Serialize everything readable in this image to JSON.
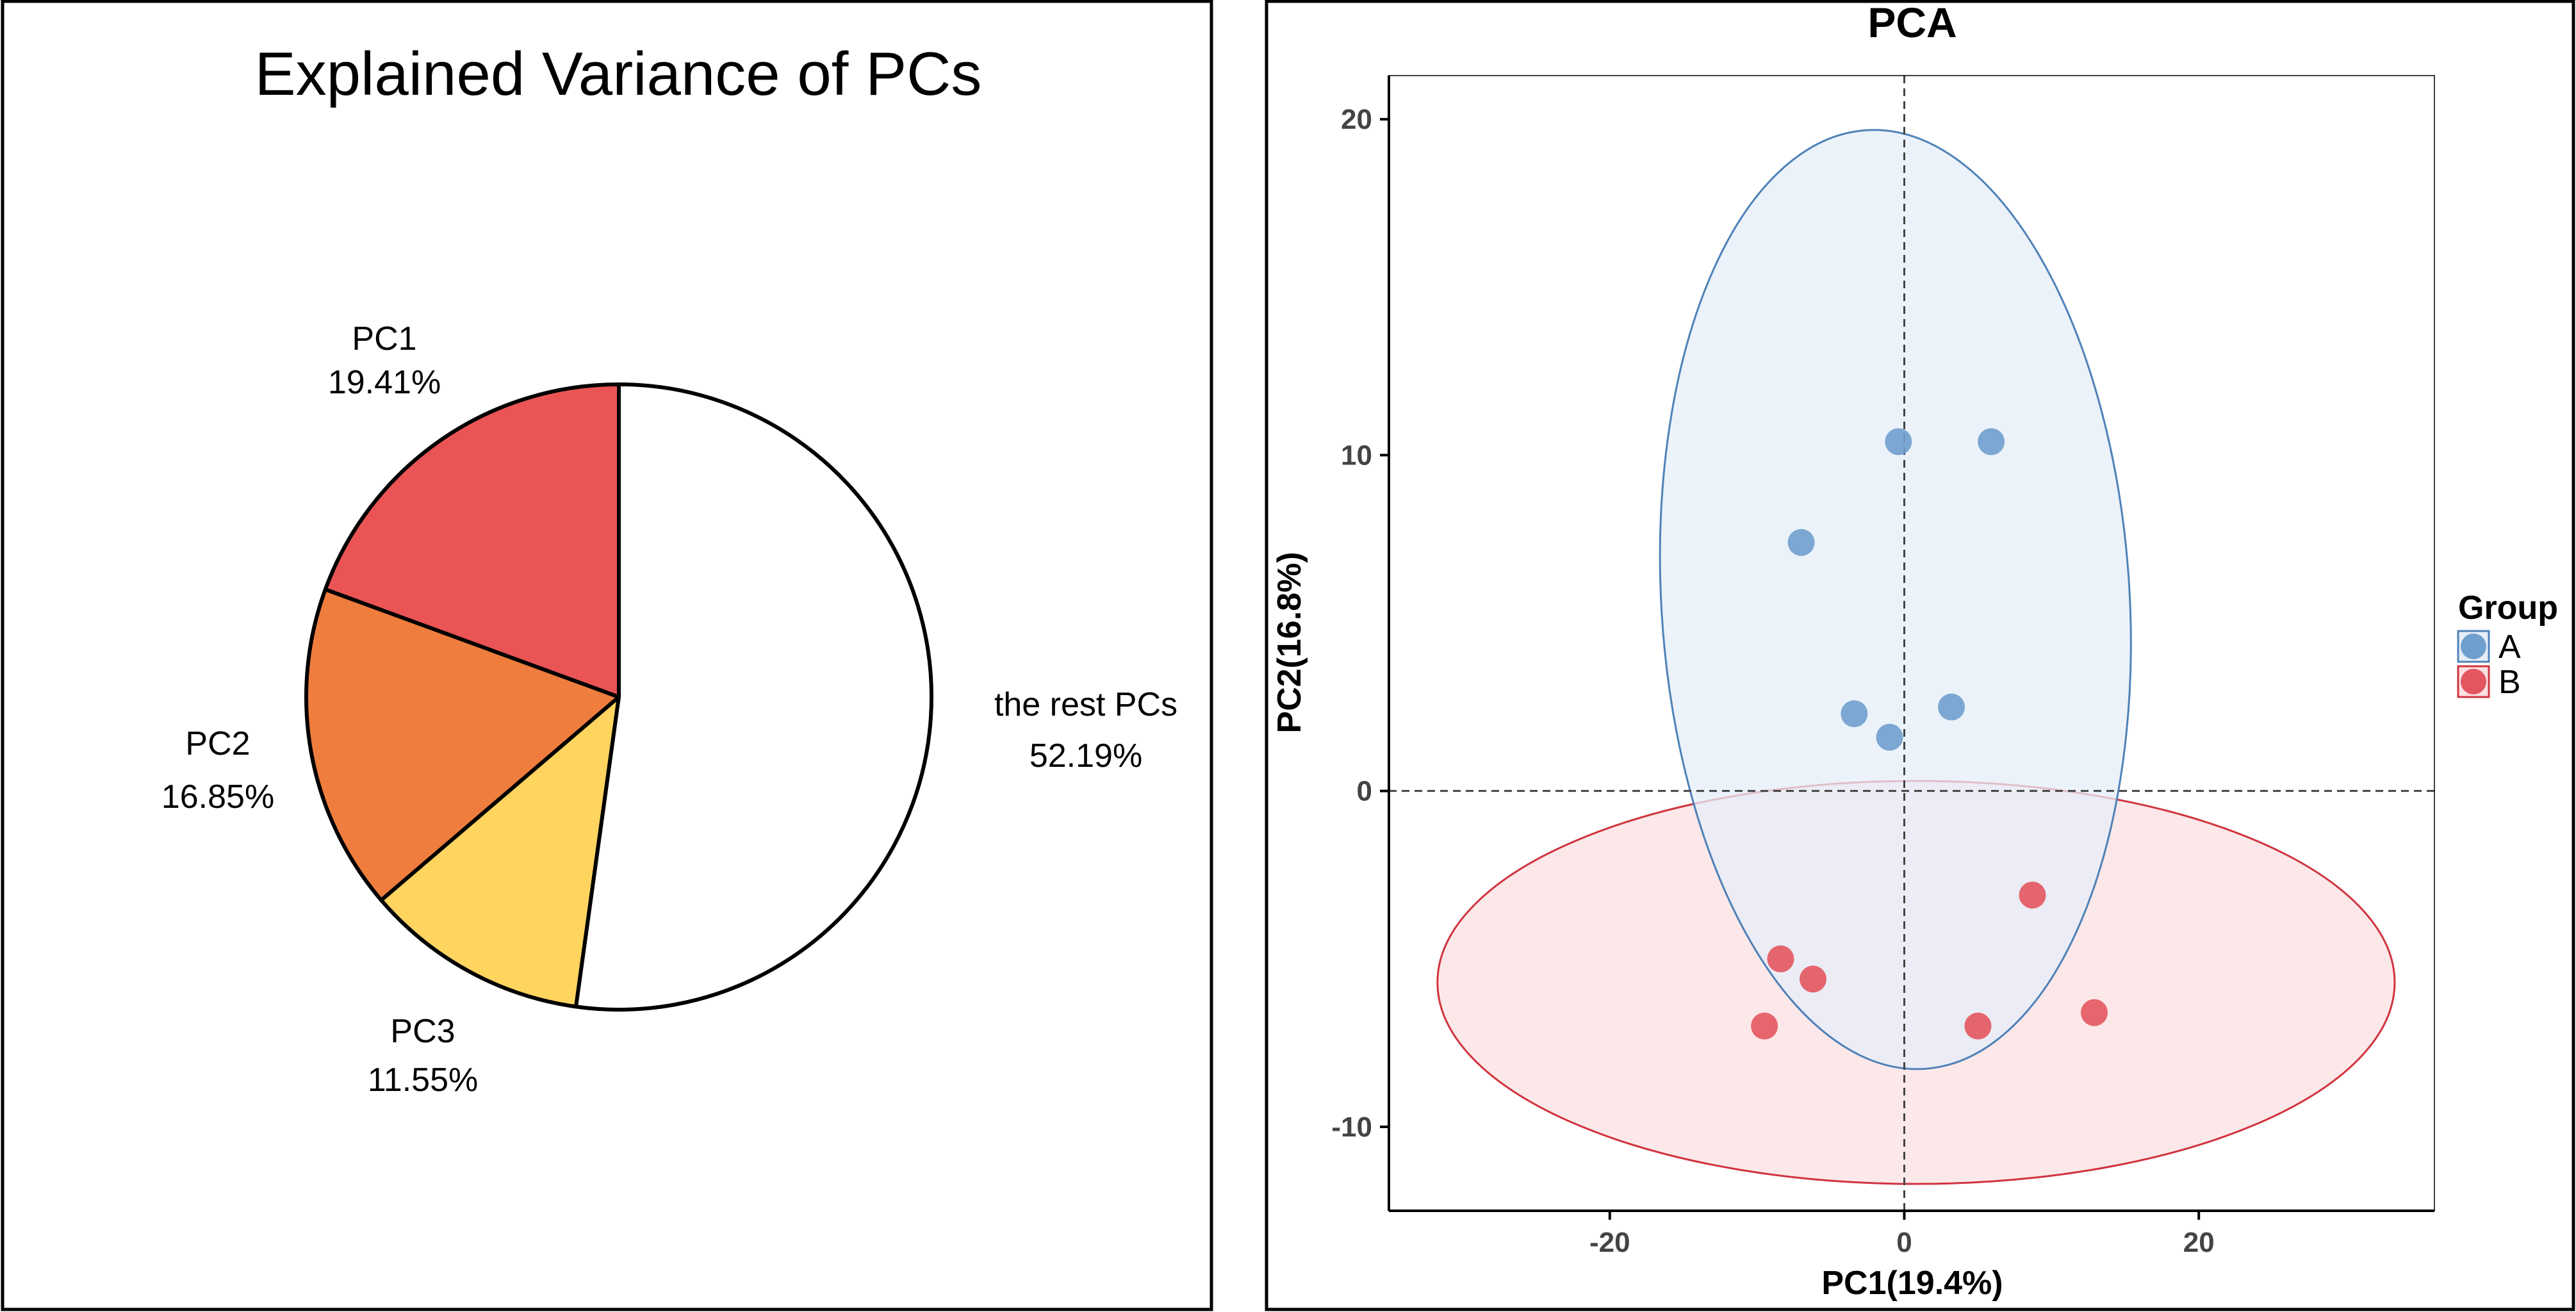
{
  "colors": {
    "pc1": "#EA5455",
    "pc2": "#EE7D3E",
    "pc3": "#FFD45F",
    "rest": "#FFFFFF",
    "group_a_point": "#6F9FCD",
    "group_a_ellipse_fill": "#E6EEF8",
    "group_a_ellipse_stroke": "#4F82B8",
    "group_b_point": "#E4565F",
    "group_b_ellipse_fill": "#FBE0E2",
    "group_b_ellipse_stroke": "#D0343E"
  },
  "chart_data": [
    {
      "type": "pie",
      "title": "Explained Variance of PCs",
      "slices": [
        {
          "name": "PC1",
          "label": "19.41%",
          "value": 19.41
        },
        {
          "name": "PC2",
          "label": "16.85%",
          "value": 16.85
        },
        {
          "name": "PC3",
          "label": "11.55%",
          "value": 11.55
        },
        {
          "name": "the rest PCs",
          "label": "52.19%",
          "value": 52.19
        }
      ]
    },
    {
      "type": "scatter",
      "title": "PCA",
      "xlabel": "PC1(19.4%)",
      "ylabel": "PC2(16.8%)",
      "xlim": [
        -35,
        36
      ],
      "ylim": [
        -12.5,
        21.3
      ],
      "xticks": [
        -20,
        0,
        20
      ],
      "xtick_labels": [
        "-20",
        "0",
        "20"
      ],
      "yticks": [
        -10,
        0,
        10,
        20
      ],
      "ytick_labels": [
        "-10",
        "0",
        "10",
        "20"
      ],
      "legend": {
        "title": "Group",
        "position": "right",
        "entries": [
          "A",
          "B"
        ]
      },
      "series": [
        {
          "name": "A",
          "points": [
            [
              -0.4,
              10.4
            ],
            [
              5.9,
              10.4
            ],
            [
              -7.0,
              7.4
            ],
            [
              -3.4,
              2.3
            ],
            [
              3.2,
              2.5
            ],
            [
              -1.0,
              1.6
            ]
          ],
          "ellipse": {
            "cx": -0.6,
            "cy": 5.7,
            "rx": 15.9,
            "ry": 14.0,
            "angle": -3.5
          }
        },
        {
          "name": "B",
          "points": [
            [
              8.7,
              -3.1
            ],
            [
              -8.4,
              -5.0
            ],
            [
              -6.2,
              -5.6
            ],
            [
              -9.5,
              -7.0
            ],
            [
              5.0,
              -7.0
            ],
            [
              12.9,
              -6.6
            ]
          ],
          "ellipse": {
            "cx": 0.8,
            "cy": -5.7,
            "rx": 32.5,
            "ry": 6.0,
            "angle": 0
          }
        }
      ]
    }
  ]
}
